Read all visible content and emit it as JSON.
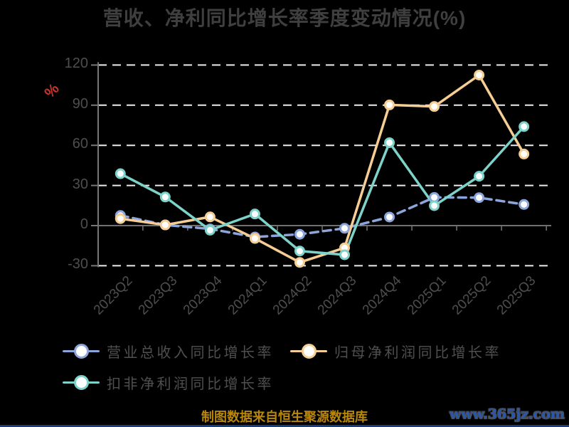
{
  "title": "营收、净利同比增长率季度变动情况(%)",
  "y_axis_name": "%",
  "footer": {
    "source_note": "制图数据来自恒生聚源数据库",
    "watermark": "www.365jz.com"
  },
  "colors": {
    "background": "#000000",
    "title_text": "#3f3f3f",
    "axis_label": "#4e4e4e",
    "grid_line": "#ececec",
    "axis_line": "#707070",
    "y_name_red": "#c9342c",
    "legend_text": "#4f4f4f",
    "source_note": "#b8860b",
    "watermark_blue": "#2a57ad",
    "revenue_series": "#8CA6DB",
    "net_profit_series": "#F6CE95",
    "deducted_profit_series": "#7DD2CA",
    "marker_fill": "#ffffff"
  },
  "legend": [
    {
      "label": "营业总收入同比增长率",
      "color": "#8CA6DB"
    },
    {
      "label": "归母净利润同比增长率",
      "color": "#F6CE95"
    },
    {
      "label": "扣非净利润同比增长率",
      "color": "#7DD2CA"
    }
  ],
  "chart_data": {
    "type": "line",
    "title": "营收、净利同比增长率季度变动情况(%)",
    "categories": [
      "2023Q2",
      "2023Q3",
      "2023Q4",
      "2024Q1",
      "2024Q2",
      "2024Q3",
      "2024Q4",
      "2025Q1",
      "2025Q2",
      "2025Q3"
    ],
    "series": [
      {
        "name": "营业总收入同比增长率",
        "key": "revenue-yoy",
        "color": "#8CA6DB",
        "style": "dashed",
        "values": [
          7.6,
          0.5,
          -2.5,
          -8.5,
          -6.5,
          -2.0,
          6.4,
          21.1,
          20.9,
          15.8
        ]
      },
      {
        "name": "归母净利润同比增长率",
        "key": "net-profit-yoy",
        "color": "#F6CE95",
        "style": "solid",
        "values": [
          5.2,
          0.5,
          6.5,
          -9.6,
          -27.5,
          -16.6,
          90.2,
          89.0,
          112.5,
          53.5
        ]
      },
      {
        "name": "扣非净利润同比增长率",
        "key": "deducted-profit-yoy",
        "color": "#7DD2CA",
        "style": "solid",
        "values": [
          38.8,
          21.4,
          -3.4,
          8.7,
          -19.0,
          -21.8,
          62.0,
          14.9,
          36.9,
          74.0
        ]
      }
    ],
    "xlabel": "",
    "ylabel": "%",
    "ylim": [
      -30,
      120
    ],
    "yticks": [
      120,
      90,
      60,
      30,
      0,
      -30
    ],
    "grid": true,
    "grid_style": "dashed-white-horizontal",
    "legend_position": "bottom-left"
  }
}
